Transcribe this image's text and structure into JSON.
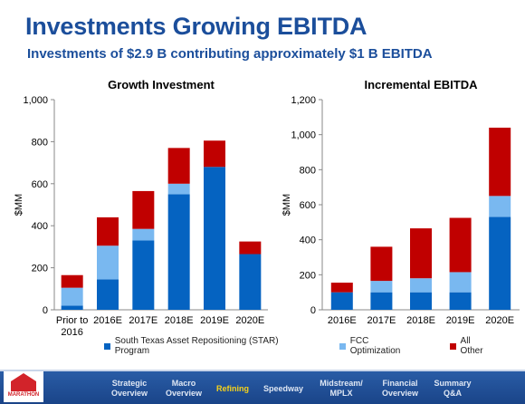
{
  "header": {
    "title": "Investments Growing EBITDA",
    "subtitle": "Investments of $2.9 B contributing approximately $1 B EBITDA"
  },
  "colors": {
    "star": "#0563c1",
    "fcc": "#79b8f0",
    "other": "#c00000",
    "title": "#1b4e9b"
  },
  "legend": {
    "items": [
      {
        "label": "South Texas Asset Repositioning (STAR) Program",
        "color": "#0563c1"
      },
      {
        "label": "FCC Optimization",
        "color": "#79b8f0"
      },
      {
        "label": "All Other",
        "color": "#c00000"
      }
    ]
  },
  "chart_data": [
    {
      "type": "bar",
      "stacked": true,
      "title": "Growth Investment",
      "ylabel": "$MM",
      "ylim": [
        0,
        1000
      ],
      "yticks": [
        0,
        200,
        400,
        600,
        800,
        1000
      ],
      "ytick_labels": [
        "0",
        "200",
        "400",
        "600",
        "800",
        "1,000"
      ],
      "categories": [
        "Prior to 2016",
        "2016E",
        "2017E",
        "2018E",
        "2019E",
        "2020E"
      ],
      "series": [
        {
          "name": "South Texas Asset Repositioning (STAR) Program",
          "values": [
            20,
            145,
            330,
            550,
            680,
            265
          ]
        },
        {
          "name": "FCC Optimization",
          "values": [
            85,
            160,
            55,
            50,
            0,
            0
          ]
        },
        {
          "name": "All Other",
          "values": [
            60,
            135,
            180,
            170,
            125,
            60
          ]
        }
      ]
    },
    {
      "type": "bar",
      "stacked": true,
      "title": "Incremental EBITDA",
      "ylabel": "$MM",
      "ylim": [
        0,
        1200
      ],
      "yticks": [
        0,
        200,
        400,
        600,
        800,
        1000,
        1200
      ],
      "ytick_labels": [
        "0",
        "200",
        "400",
        "600",
        "800",
        "1,000",
        "1,200"
      ],
      "categories": [
        "2016E",
        "2017E",
        "2018E",
        "2019E",
        "2020E"
      ],
      "series": [
        {
          "name": "South Texas Asset Repositioning (STAR) Program",
          "values": [
            100,
            100,
            100,
            100,
            530
          ]
        },
        {
          "name": "FCC Optimization",
          "values": [
            0,
            65,
            80,
            115,
            120
          ]
        },
        {
          "name": "All Other",
          "values": [
            55,
            195,
            285,
            310,
            390
          ]
        }
      ]
    }
  ],
  "footer": {
    "logo_text": "MARATHON",
    "nav": [
      {
        "label": "Strategic\nOverview",
        "active": false
      },
      {
        "label": "Macro\nOverview",
        "active": false
      },
      {
        "label": "Refining",
        "active": true
      },
      {
        "label": "Speedway",
        "active": true
      },
      {
        "label": "Midstream/\nMPLX",
        "active": false
      },
      {
        "label": "Financial\nOverview",
        "active": false
      },
      {
        "label": "Summary\nQ&A",
        "active": false
      }
    ]
  }
}
